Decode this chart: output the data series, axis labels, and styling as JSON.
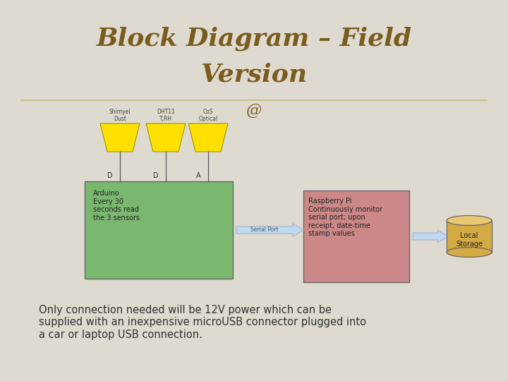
{
  "bg_color": "#dedad0",
  "title_line1": "Block Diagram – Field",
  "title_line2": "Version",
  "title_color": "#7a5c1e",
  "title_fontsize": 26,
  "divider_color": "#c8b882",
  "sensor_labels": [
    "Shimyel\nDust",
    "DHT11\nT,RH",
    "CoS\nOptical"
  ],
  "sensor_color": "#FFE000",
  "sensor_edge_color": "#999900",
  "arduino_text": "Arduino\nEvery 30\nseconds read\nthe 3 sensors",
  "arduino_color": "#7ab870",
  "arduino_edge": "#666666",
  "rpi_text": "Raspberry Pi\nContinuously monitor\nserial port; upon\nreceipt, date-time\nstamp values",
  "rpi_color": "#cc8888",
  "rpi_edge": "#666666",
  "storage_color": "#d4aa44",
  "storage_top_color": "#e8c870",
  "storage_edge": "#666666",
  "storage_label": "Local\nStorage",
  "serial_port_label": "Serial Port",
  "arrow_color": "#c0d8f0",
  "arrow_edge": "#aabbd0",
  "pin_labels": [
    "D",
    "D",
    "A"
  ],
  "footer_text": "Only connection needed will be 12V power which can be\nsupplied with an inexpensive microUSB connector plugged into\na car or laptop USB connection.",
  "footer_color": "#333333",
  "footer_fontsize": 10.5,
  "label_fontsize": 5.5,
  "pin_fontsize": 7,
  "arduino_fontsize": 7,
  "rpi_fontsize": 7,
  "storage_fontsize": 7,
  "serial_fontsize": 5.5
}
